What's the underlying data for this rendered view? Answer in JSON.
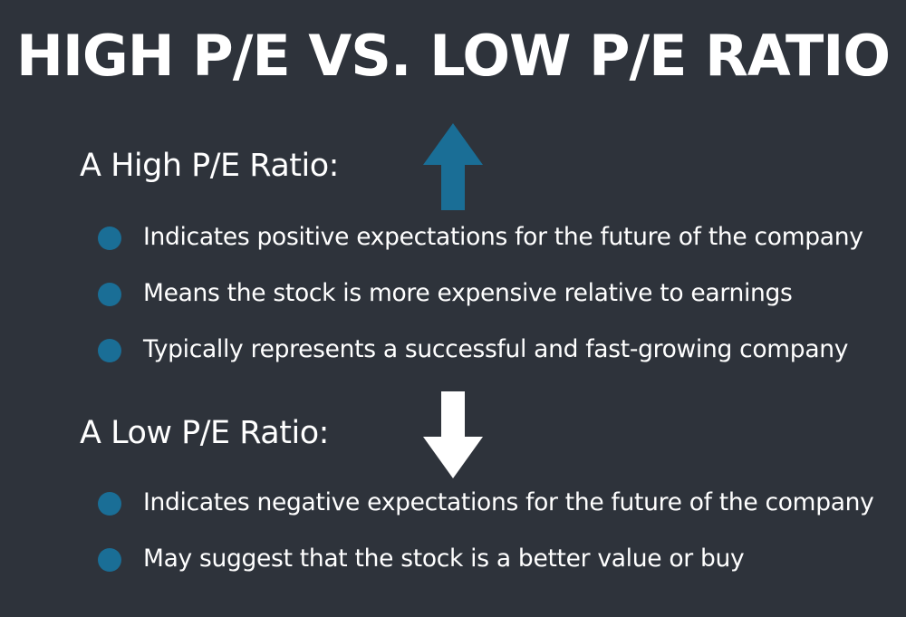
{
  "title": "HIGH P/E VS. LOW P/E RATIO",
  "high": {
    "heading": "A High P/E Ratio:",
    "arrow_color": "#1a6e96",
    "arrow_icon": "arrow-up-icon",
    "items": [
      "Indicates positive expectations for the future of the company",
      "Means the stock is more expensive relative to earnings",
      "Typically represents a successful and fast-growing company"
    ]
  },
  "low": {
    "heading": "A Low P/E Ratio:",
    "arrow_color": "#ffffff",
    "arrow_icon": "arrow-down-icon",
    "items": [
      "Indicates negative expectations for the future of the company",
      "May suggest that the stock is a better value or buy"
    ]
  },
  "colors": {
    "background": "#2e333b",
    "bullet": "#1a6e96",
    "text": "#ffffff"
  }
}
